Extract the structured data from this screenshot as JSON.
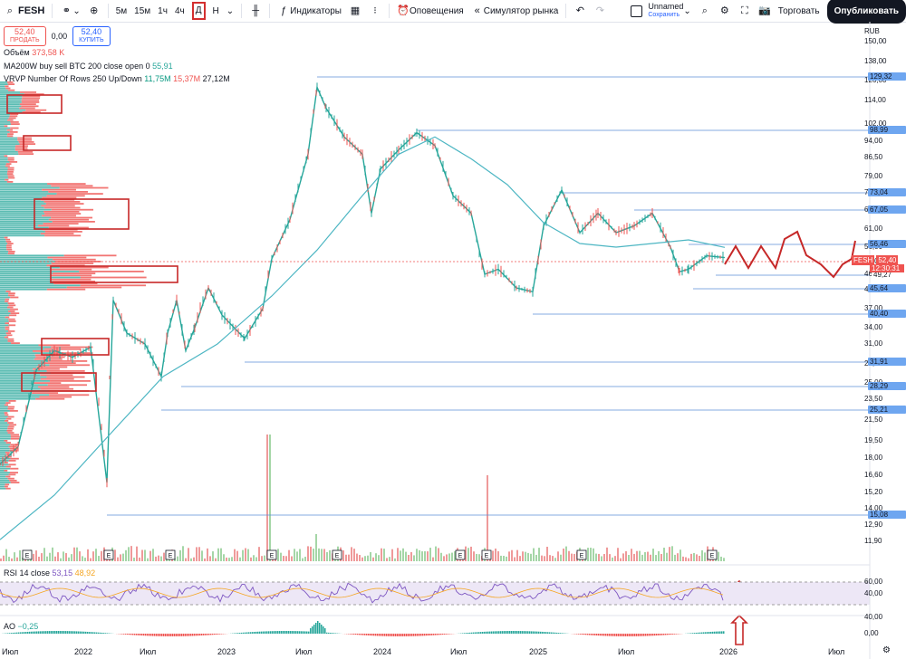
{
  "toolbar": {
    "symbol": "FESH",
    "intervals": [
      "5м",
      "15м",
      "1ч",
      "4ч",
      "Д",
      "Н"
    ],
    "indicators_label": "Индикаторы",
    "alerts_label": "Оповещения",
    "replay_label": "Симулятор рынка",
    "layout_name": "Unnamed",
    "layout_saved": "Сохранить",
    "trade_label": "Торговать",
    "publish_label": "Опубликовать"
  },
  "order": {
    "sell_price": "52,40",
    "sell_label": "ПРОДАТЬ",
    "spread": "0,00",
    "buy_price": "52,40",
    "buy_label": "КУПИТЬ"
  },
  "legend": {
    "volume_label": "Объём",
    "volume_value": "373,58 K",
    "ma_label": "MA200W buy sell BTC 200 close open 0",
    "ma_value": "55,91",
    "vrvp_label": "VRVP Number Of Rows 250 Up/Down",
    "vrvp_up": "11,75M",
    "vrvp_down": "15,37M",
    "vrvp_total": "27,12M",
    "rsi_label": "RSI 14 close",
    "rsi_value": "53,15",
    "rsi_ma": "48,92",
    "ao_label": "AO",
    "ao_value": "−0,25"
  },
  "price_axis": {
    "currency": "RUB",
    "ticks": [
      "150,00",
      "138,00",
      "126,00",
      "114,00",
      "102,00",
      "94,00",
      "86,50",
      "79,00",
      "73,00",
      "67,00",
      "61,00",
      "56,00",
      "51,00",
      "46,00",
      "41,50",
      "37,00",
      "34,00",
      "31,00",
      "28,00",
      "25,00",
      "23,50",
      "21,50",
      "19,50",
      "18,00",
      "16,60",
      "15,20",
      "14,00",
      "12,90",
      "11,90"
    ],
    "levels": [
      "129,32",
      "98,99",
      "73,04",
      "67,05",
      "56,46",
      "49,27",
      "45,64",
      "40,40",
      "31,91",
      "28,29",
      "25,21",
      "15,08"
    ],
    "last_price": "52,40",
    "countdown": "12:30:31",
    "symbol_tag": "FESH"
  },
  "rsi_axis": [
    "60,00",
    "40,00"
  ],
  "ao_axis": [
    "40,00",
    "0,00"
  ],
  "time_axis": [
    "Июл",
    "2022",
    "Июл",
    "2023",
    "Июл",
    "2024",
    "Июл",
    "2025",
    "Июл",
    "2026",
    "Июл"
  ],
  "earnings_marker": "E",
  "colors": {
    "up": "#26a69a",
    "down": "#ef5350",
    "ma": "#4db6c3",
    "level": "#5b8fd6",
    "annot": "#c62828",
    "accent": "#2962ff"
  }
}
